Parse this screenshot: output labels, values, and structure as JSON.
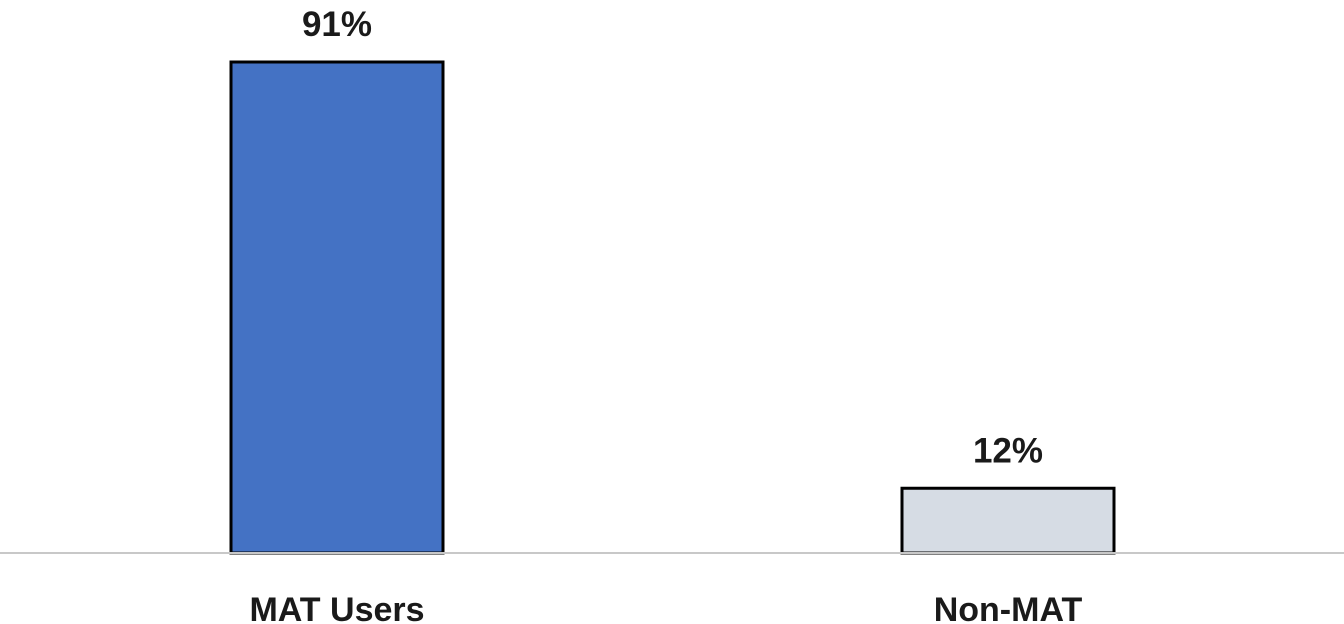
{
  "chart_data": {
    "type": "bar",
    "categories": [
      "MAT Users",
      "Non-MAT"
    ],
    "values": [
      91,
      12
    ],
    "value_labels": [
      "91%",
      "12%"
    ],
    "bar_colors": [
      "#4472c4",
      "#d6dce4"
    ],
    "ylim": [
      0,
      91
    ],
    "grid": false,
    "legend": "none"
  }
}
